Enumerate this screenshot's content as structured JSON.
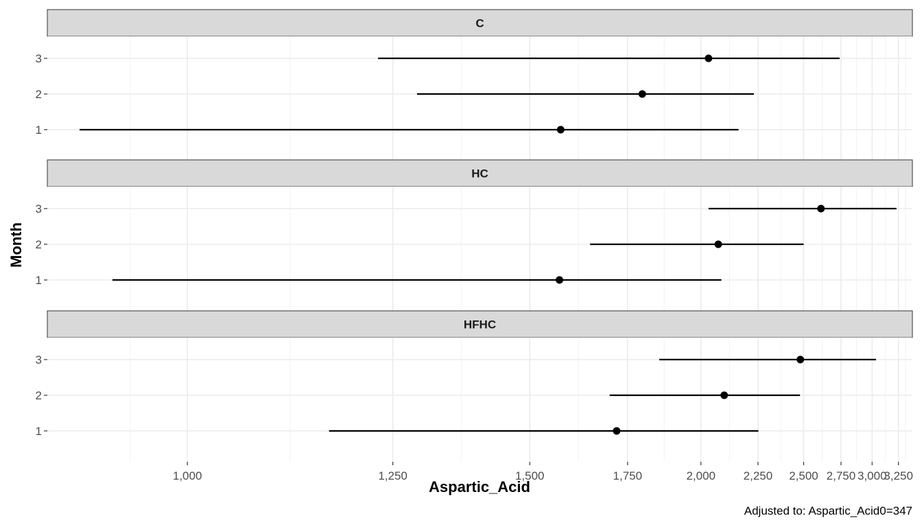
{
  "chart_data": {
    "type": "forest",
    "xlabel": "Aspartic_Acid",
    "ylabel": "Month",
    "caption": "Adjusted to: Aspartic_Acid0=347",
    "x_scale": "reciprocal",
    "xlim": [
      880,
      3400
    ],
    "x_ticks": [
      1000,
      1250,
      1500,
      1750,
      2000,
      2250,
      2500,
      2750,
      3000,
      3250
    ],
    "x_tick_labels": [
      "1,000",
      "1,250",
      "1,500",
      "1,750",
      "2,000",
      "2,250",
      "2,500",
      "2,750",
      "3,000",
      "3,250"
    ],
    "y_categories": [
      "1",
      "2",
      "3"
    ],
    "grid": true,
    "panels": [
      {
        "label": "C",
        "points": [
          {
            "month": "3",
            "estimate": 2030,
            "lower": 1228,
            "upper": 2740
          },
          {
            "month": "2",
            "estimate": 1795,
            "lower": 1288,
            "upper": 2230
          },
          {
            "month": "1",
            "estimate": 1571,
            "lower": 905,
            "upper": 2158
          }
        ]
      },
      {
        "label": "HC",
        "points": [
          {
            "month": "3",
            "estimate": 2610,
            "lower": 2030,
            "upper": 3230
          },
          {
            "month": "2",
            "estimate": 2070,
            "lower": 1645,
            "upper": 2500
          },
          {
            "month": "1",
            "estimate": 1568,
            "lower": 932,
            "upper": 2083
          }
        ]
      },
      {
        "label": "HFHC",
        "points": [
          {
            "month": "3",
            "estimate": 2480,
            "lower": 1850,
            "upper": 3035
          },
          {
            "month": "2",
            "estimate": 2095,
            "lower": 1698,
            "upper": 2478
          },
          {
            "month": "1",
            "estimate": 1718,
            "lower": 1160,
            "upper": 2252
          }
        ]
      }
    ]
  }
}
